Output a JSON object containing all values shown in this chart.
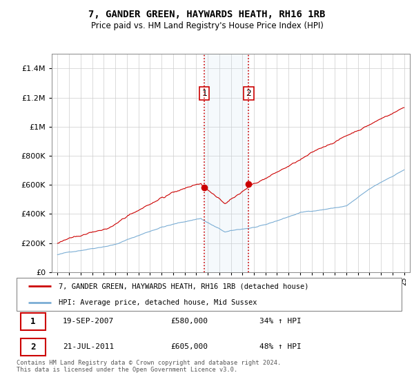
{
  "title": "7, GANDER GREEN, HAYWARDS HEATH, RH16 1RB",
  "subtitle": "Price paid vs. HM Land Registry's House Price Index (HPI)",
  "legend_entry1": "7, GANDER GREEN, HAYWARDS HEATH, RH16 1RB (detached house)",
  "legend_entry2": "HPI: Average price, detached house, Mid Sussex",
  "footer": "Contains HM Land Registry data © Crown copyright and database right 2024.\nThis data is licensed under the Open Government Licence v3.0.",
  "red_color": "#cc0000",
  "blue_color": "#7aadd4",
  "sale1_year": 2007.72,
  "sale1_price": 580000,
  "sale2_year": 2011.55,
  "sale2_price": 605000,
  "ylim_max": 1500000,
  "xlim_min": 1994.5,
  "xlim_max": 2025.5
}
